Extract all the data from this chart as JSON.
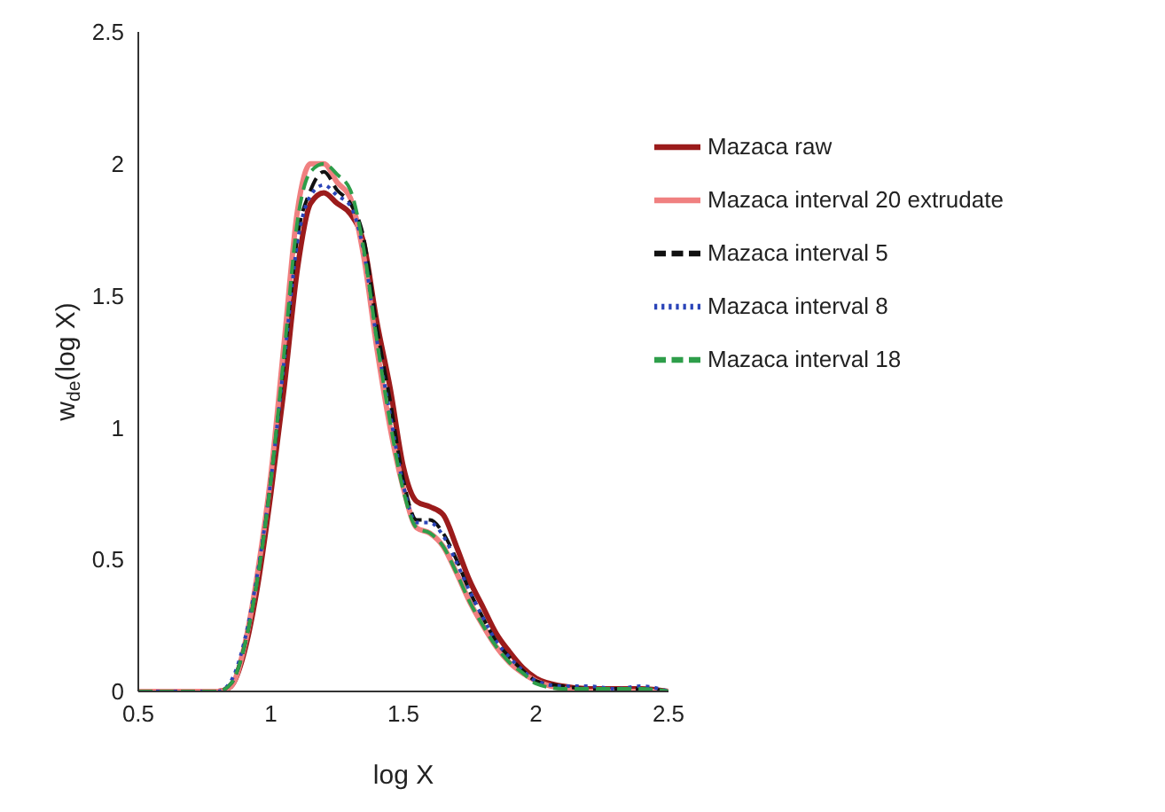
{
  "chart_data": {
    "type": "line",
    "xlabel": "log X",
    "ylabel": "w$_{de}$(log X)",
    "xlim": [
      0.5,
      2.5
    ],
    "xticks": [
      0.5,
      1,
      1.5,
      2,
      2.5
    ],
    "ylim": [
      0,
      2.5
    ],
    "yticks": [
      0,
      0.5,
      1,
      1.5,
      2,
      2.5
    ],
    "grid": false,
    "legend": "top right",
    "marker": "none",
    "x": [
      0.5,
      0.8,
      0.85,
      0.9,
      0.95,
      1.0,
      1.05,
      1.1,
      1.15,
      1.2,
      1.25,
      1.3,
      1.35,
      1.4,
      1.45,
      1.5,
      1.55,
      1.6,
      1.65,
      1.7,
      1.75,
      1.8,
      1.85,
      1.9,
      1.95,
      2.0,
      2.1,
      2.2,
      2.3,
      2.4,
      2.5
    ],
    "series": [
      {
        "name": "Mazaca raw",
        "color": "#9b1b1b",
        "line_style": "solid",
        "values": [
          0,
          0,
          0.02,
          0.15,
          0.4,
          0.75,
          1.15,
          1.6,
          1.85,
          1.89,
          1.85,
          1.81,
          1.7,
          1.4,
          1.15,
          0.85,
          0.72,
          0.7,
          0.67,
          0.55,
          0.42,
          0.32,
          0.22,
          0.15,
          0.09,
          0.05,
          0.02,
          0.01,
          0.01,
          0.01,
          0
        ]
      },
      {
        "name": "Mazaca interval 5",
        "color": "#111111",
        "line_style": "dashed",
        "values": [
          0,
          0,
          0.03,
          0.17,
          0.43,
          0.8,
          1.25,
          1.72,
          1.9,
          1.97,
          1.9,
          1.85,
          1.72,
          1.38,
          1.1,
          0.8,
          0.65,
          0.65,
          0.6,
          0.5,
          0.38,
          0.28,
          0.19,
          0.13,
          0.08,
          0.04,
          0.02,
          0.01,
          0.01,
          0.01,
          0
        ]
      },
      {
        "name": "Mazaca interval 8",
        "color": "#2a44b8",
        "line_style": "dotted",
        "values": [
          0,
          0,
          0.04,
          0.19,
          0.45,
          0.8,
          1.25,
          1.7,
          1.88,
          1.92,
          1.88,
          1.84,
          1.67,
          1.33,
          1.05,
          0.78,
          0.64,
          0.64,
          0.59,
          0.49,
          0.38,
          0.28,
          0.19,
          0.13,
          0.08,
          0.04,
          0.02,
          0.02,
          0.01,
          0.02,
          0
        ]
      },
      {
        "name": "Mazaca interval 18",
        "color": "#2e9e4a",
        "line_style": "dashed",
        "values": [
          0,
          0,
          0.03,
          0.17,
          0.43,
          0.8,
          1.28,
          1.78,
          1.97,
          2.0,
          1.96,
          1.9,
          1.68,
          1.33,
          1.02,
          0.76,
          0.62,
          0.6,
          0.55,
          0.45,
          0.34,
          0.25,
          0.17,
          0.11,
          0.07,
          0.03,
          0.01,
          0.01,
          0.01,
          0.01,
          0
        ]
      },
      {
        "name": "Mazaca interval 20 extrudate",
        "color": "#f08080",
        "line_style": "solid",
        "values": [
          0,
          0,
          0.02,
          0.17,
          0.45,
          0.82,
          1.32,
          1.82,
          2.0,
          2.0,
          1.93,
          1.87,
          1.65,
          1.3,
          1.0,
          0.77,
          0.62,
          0.6,
          0.55,
          0.45,
          0.34,
          0.25,
          0.17,
          0.11,
          0.07,
          0.04,
          0.01,
          0,
          0,
          0,
          0
        ]
      }
    ]
  }
}
